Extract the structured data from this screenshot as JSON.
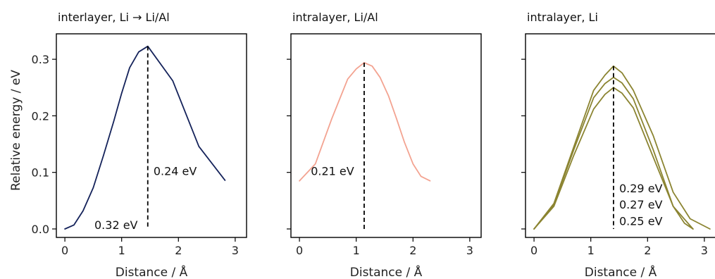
{
  "y_axis_label": "Relative energy / eV",
  "x_axis_label": "Distance / Å",
  "colors": {
    "navy": "#14225a",
    "salmon": "#f3a391",
    "olive": "#8b8431"
  },
  "chart_data": [
    {
      "type": "line",
      "title": "interlayer, Li → Li/Al",
      "xlabel": "Distance / Å",
      "ylabel": "Relative energy / eV",
      "xlim": [
        -0.15,
        3.2
      ],
      "ylim": [
        -0.015,
        0.345
      ],
      "xticks": [
        "0",
        "1",
        "2",
        "3"
      ],
      "yticks": [
        "0.0",
        "0.1",
        "0.2",
        "0.3"
      ],
      "series": [
        {
          "color": "#14225a",
          "x": [
            0,
            0.16,
            0.32,
            0.5,
            0.68,
            0.86,
            1.0,
            1.14,
            1.3,
            1.46,
            1.9,
            2.36,
            2.82
          ],
          "y": [
            0.0,
            0.007,
            0.032,
            0.073,
            0.13,
            0.19,
            0.24,
            0.285,
            0.313,
            0.323,
            0.262,
            0.146,
            0.086
          ]
        }
      ],
      "barrier": {
        "x": 1.46,
        "y_top": 0.323
      },
      "annotations": [
        {
          "text": "0.24 eV",
          "x": 1.56,
          "y": 0.095
        },
        {
          "text": "0.32 eV",
          "x": 0.52,
          "y": 0.0
        }
      ]
    },
    {
      "type": "line",
      "title": "intralayer, Li/Al",
      "xlabel": "Distance / Å",
      "ylabel": "",
      "xlim": [
        -0.15,
        3.2
      ],
      "ylim": [
        -0.015,
        0.345
      ],
      "xticks": [
        "0",
        "1",
        "2",
        "3"
      ],
      "yticks": [
        "",
        "",
        "",
        ""
      ],
      "series": [
        {
          "color": "#f3a391",
          "x": [
            0,
            0.28,
            0.57,
            0.85,
            1.0,
            1.14,
            1.28,
            1.42,
            1.57,
            1.71,
            1.85,
            2.0,
            2.14,
            2.3
          ],
          "y": [
            0.085,
            0.115,
            0.195,
            0.265,
            0.283,
            0.294,
            0.288,
            0.268,
            0.235,
            0.195,
            0.153,
            0.115,
            0.093,
            0.085
          ]
        }
      ],
      "barrier": {
        "x": 1.14,
        "y_top": 0.294
      },
      "annotations": [
        {
          "text": "0.21 eV",
          "x": 0.2,
          "y": 0.095
        }
      ]
    },
    {
      "type": "line",
      "title": "intralayer, Li",
      "xlabel": "Distance / Å",
      "ylabel": "",
      "xlim": [
        -0.15,
        3.2
      ],
      "ylim": [
        -0.015,
        0.345
      ],
      "xticks": [
        "0",
        "1",
        "2",
        "3"
      ],
      "yticks": [
        "",
        "",
        "",
        ""
      ],
      "series": [
        {
          "color": "#8b8431",
          "x": [
            0,
            0.35,
            0.7,
            1.05,
            1.25,
            1.4,
            1.55,
            1.75,
            2.1,
            2.45,
            2.75,
            3.1
          ],
          "y": [
            0.0,
            0.045,
            0.145,
            0.245,
            0.272,
            0.288,
            0.276,
            0.245,
            0.165,
            0.065,
            0.018,
            0.0
          ]
        },
        {
          "color": "#8b8431",
          "x": [
            0,
            0.35,
            0.7,
            1.05,
            1.25,
            1.4,
            1.55,
            1.75,
            2.1,
            2.45,
            2.8
          ],
          "y": [
            0.0,
            0.043,
            0.14,
            0.232,
            0.257,
            0.268,
            0.258,
            0.23,
            0.14,
            0.04,
            0.0
          ]
        },
        {
          "color": "#8b8431",
          "x": [
            0,
            0.35,
            0.7,
            1.05,
            1.25,
            1.4,
            1.55,
            1.75,
            2.1,
            2.45,
            2.65,
            2.8
          ],
          "y": [
            0.0,
            0.04,
            0.13,
            0.212,
            0.238,
            0.25,
            0.24,
            0.214,
            0.127,
            0.04,
            0.01,
            0.0
          ]
        }
      ],
      "barrier": {
        "x": 1.4,
        "y_top": 0.288
      },
      "annotations": [
        {
          "text": "0.29 eV",
          "x": 1.5,
          "y": 0.065
        },
        {
          "text": "0.27 eV",
          "x": 1.5,
          "y": 0.036
        },
        {
          "text": "0.25 eV",
          "x": 1.5,
          "y": 0.007
        }
      ]
    }
  ]
}
